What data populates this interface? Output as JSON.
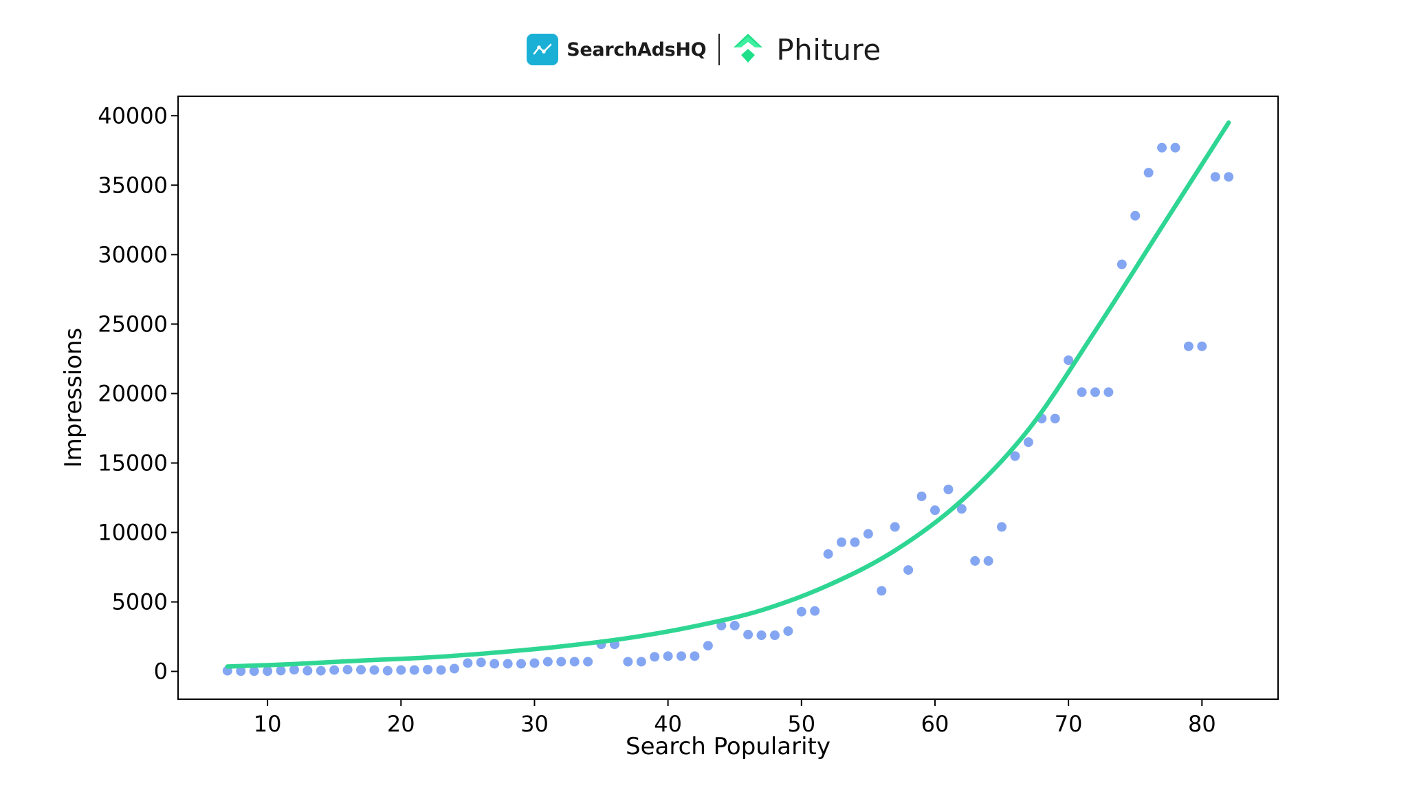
{
  "header": {
    "brand1": {
      "name": "SearchAdsHQ",
      "icon": "chart-line-icon",
      "color": "#1ab0d6"
    },
    "brand2": {
      "name": "Phiture",
      "icon": "diamond-chevron-icon",
      "color": "#1fe08a"
    }
  },
  "chart_data": {
    "type": "scatter",
    "title": "",
    "xlabel": "Search Popularity",
    "ylabel": "Impressions",
    "xlim": [
      3.3,
      85.7
    ],
    "ylim": [
      -2000,
      41400
    ],
    "xticks": [
      10,
      20,
      30,
      40,
      50,
      60,
      70,
      80
    ],
    "yticks": [
      0,
      5000,
      10000,
      15000,
      20000,
      25000,
      30000,
      35000,
      40000
    ],
    "grid": false,
    "legend": "none",
    "point_color": "#84a6f2",
    "line_color": "#2fd693",
    "points": {
      "x": [
        7,
        8,
        9,
        10,
        11,
        12,
        13,
        14,
        15,
        16,
        17,
        18,
        19,
        20,
        21,
        22,
        23,
        24,
        25,
        26,
        27,
        28,
        29,
        30,
        31,
        32,
        33,
        34,
        35,
        36,
        37,
        38,
        39,
        40,
        41,
        42,
        43,
        44,
        45,
        46,
        47,
        48,
        49,
        50,
        51,
        52,
        53,
        54,
        55,
        56,
        57,
        58,
        59,
        60,
        61,
        62,
        63,
        64,
        65,
        66,
        67,
        68,
        69,
        70,
        71,
        72,
        73,
        74,
        75,
        76,
        77,
        78,
        79,
        80,
        81,
        82
      ],
      "y": [
        50,
        20,
        20,
        20,
        60,
        120,
        50,
        50,
        100,
        130,
        120,
        100,
        50,
        100,
        100,
        130,
        100,
        200,
        600,
        650,
        550,
        550,
        550,
        600,
        700,
        700,
        700,
        700,
        1950,
        1950,
        700,
        700,
        1050,
        1100,
        1100,
        1100,
        1850,
        3300,
        3300,
        2650,
        2600,
        2600,
        2900,
        4300,
        4350,
        8450,
        9300,
        9300,
        9900,
        5800,
        10400,
        7300,
        12600,
        11600,
        13100,
        11700,
        7950,
        7950,
        10400,
        15500,
        16500,
        18200,
        18200,
        22400,
        20100,
        20100,
        20100,
        29300,
        32800,
        35900,
        37700,
        37700,
        23400,
        23400,
        35600,
        35600
      ]
    },
    "fit_curve": {
      "x": [
        7,
        12,
        17,
        22,
        27,
        32,
        37,
        42,
        47,
        52,
        57,
        62,
        67,
        72,
        77,
        82
      ],
      "y": [
        350,
        530,
        780,
        1000,
        1350,
        1800,
        2400,
        3250,
        4400,
        6200,
        8700,
        12300,
        17400,
        24500,
        32000,
        39500
      ]
    }
  }
}
